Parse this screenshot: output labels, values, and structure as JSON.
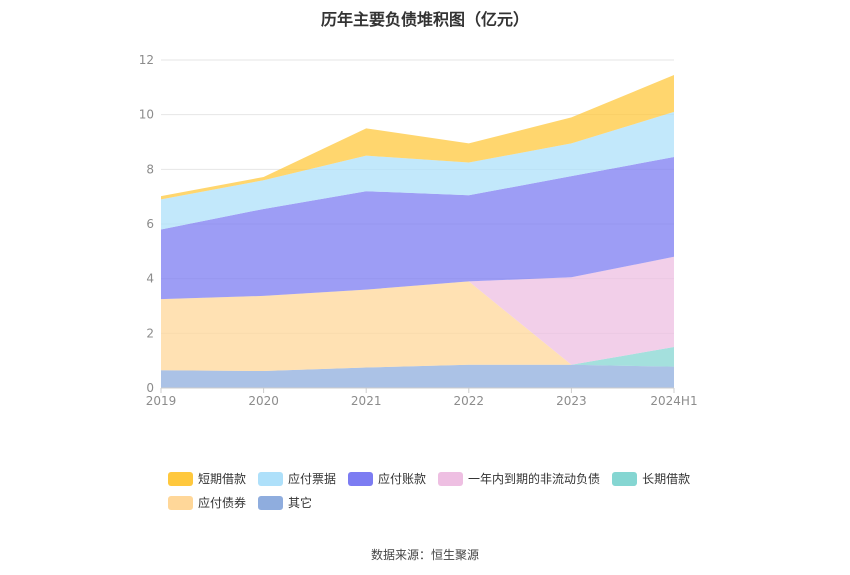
{
  "chart_data": {
    "type": "area",
    "stacked": true,
    "title": "历年主要负债堆积图（亿元）",
    "categories": [
      "2019",
      "2020",
      "2021",
      "2022",
      "2023",
      "2024H1"
    ],
    "ylim": [
      0,
      12
    ],
    "yticks": [
      0,
      2,
      4,
      6,
      8,
      10,
      12
    ],
    "grid": true,
    "legend_position": "bottom",
    "series": [
      {
        "name": "其它",
        "color": "#8fadde",
        "values": [
          0.65,
          0.62,
          0.75,
          0.85,
          0.85,
          0.78
        ]
      },
      {
        "name": "应付债券",
        "color": "#ffd799",
        "values": [
          2.6,
          2.75,
          2.85,
          3.05,
          0,
          0
        ]
      },
      {
        "name": "长期借款",
        "color": "#85d6d2",
        "values": [
          0,
          0,
          0,
          0,
          0,
          0.72
        ]
      },
      {
        "name": "一年内到期的非流动负债",
        "color": "#eebfe2",
        "values": [
          0,
          0,
          0,
          0,
          3.2,
          3.3
        ]
      },
      {
        "name": "应付账款",
        "color": "#7c7cf2",
        "values": [
          2.55,
          3.18,
          3.6,
          3.15,
          3.7,
          3.65
        ]
      },
      {
        "name": "应付票据",
        "color": "#aee0fa",
        "values": [
          1.1,
          1.05,
          1.3,
          1.2,
          1.2,
          1.65
        ]
      },
      {
        "name": "短期借款",
        "color": "#ffc83d",
        "values": [
          0.12,
          0.12,
          1.0,
          0.7,
          0.95,
          1.35
        ]
      }
    ],
    "legend_order": [
      "短期借款",
      "应付票据",
      "应付账款",
      "一年内到期的非流动负债",
      "长期借款",
      "应付债券",
      "其它"
    ]
  },
  "source": "数据来源：恒生聚源"
}
